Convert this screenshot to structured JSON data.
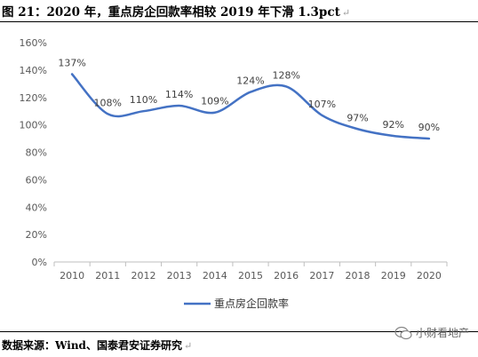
{
  "title": "图 21：2020 年，重点房企回款率相较 2019 年下滑 1.3pct",
  "source": "数据来源：Wind、国泰君安证券研究",
  "watermark": "小财看地产",
  "return_mark": "↵",
  "chart_data": {
    "type": "line",
    "x": [
      "2010",
      "2011",
      "2012",
      "2013",
      "2014",
      "2015",
      "2016",
      "2017",
      "2018",
      "2019",
      "2020"
    ],
    "series": [
      {
        "name": "重点房企回款率",
        "values": [
          137,
          108,
          110,
          114,
          109,
          124,
          128,
          107,
          97,
          92,
          90
        ],
        "labels": [
          "137%",
          "108%",
          "110%",
          "114%",
          "109%",
          "124%",
          "128%",
          "107%",
          "97%",
          "92%",
          "90%"
        ],
        "color": "#4472C4"
      }
    ],
    "ylim": [
      0,
      160
    ],
    "yticks": [
      0,
      20,
      40,
      60,
      80,
      100,
      120,
      140,
      160
    ],
    "ytick_labels": [
      "0%",
      "20%",
      "40%",
      "60%",
      "80%",
      "100%",
      "120%",
      "140%",
      "160%"
    ],
    "smooth": true,
    "grid": false,
    "legend": "bottom"
  }
}
